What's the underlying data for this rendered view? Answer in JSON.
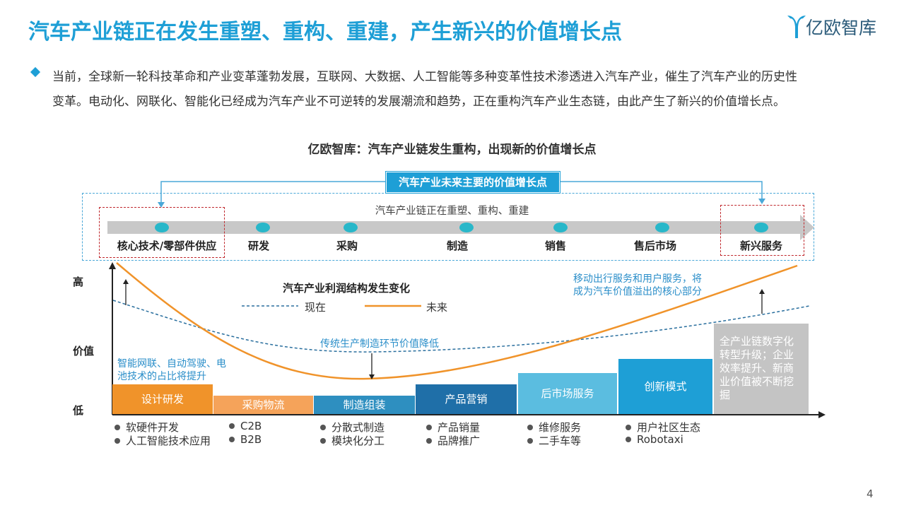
{
  "header": {
    "title": "汽车产业链正在发生重塑、重构、重建，产生新兴的价值增长点",
    "logo_text": "亿欧智库"
  },
  "intro": {
    "line1": "当前，全球新一轮科技革命和产业变革蓬勃发展，互联网、大数据、人工智能等多种变革性技术渗透进入汽车产业，催生了汽车产业的历史性",
    "line2": "变革。电动化、网联化、智能化已经成为汽车产业不可逆转的发展潮流和趋势，正在重构汽车产业生态链，由此产生了新兴的价值增长点。"
  },
  "diagram": {
    "title": "亿欧智库：汽车产业链发生重构，出现新的价值增长点",
    "future_growth_label": "汽车产业未来主要的价值增长点",
    "chain_subtitle": "汽车产业链正在重塑、重构、重建",
    "stages": [
      "核心技术/零部件供应",
      "研发",
      "采购",
      "制造",
      "销售",
      "售后市场",
      "新兴服务"
    ],
    "y_axis": {
      "high": "高",
      "mid": "价值",
      "low": "低"
    },
    "legend": {
      "title": "汽车产业利润结构发生变化",
      "now": "现在",
      "future": "未来"
    },
    "notes": {
      "left": [
        "智能网联、自动驾驶、电",
        "池技术的占比将提升"
      ],
      "middle": "传统生产制造环节价值降低",
      "right": [
        "移动出行服务和用户服务，将",
        "成为汽车价值溢出的核心部分"
      ]
    },
    "bars": [
      {
        "label": "设计研发",
        "color": "#f0932a"
      },
      {
        "label": "采购物流",
        "color": "#f5a35a"
      },
      {
        "label": "制造组装",
        "color": "#2e8fc0"
      },
      {
        "label": "产品营销",
        "color": "#1f6fa8"
      },
      {
        "label": "后市场服务",
        "color": "#5bbde0"
      },
      {
        "label": "创新模式",
        "color": "#1e9fd6"
      },
      {
        "label": "全产业链数字化转型升级；企业效率提升、新商业价值被不断挖掘",
        "color": "#c4c4c4"
      }
    ],
    "bar_values_note": "relative heights shown in figure",
    "lists": [
      [
        "软硬件开发",
        "人工智能技术应用"
      ],
      [
        "C2B",
        "B2B"
      ],
      [
        "分散式制造",
        "模块化分工"
      ],
      [
        "产品销量",
        "品牌推广"
      ],
      [
        "维修服务",
        "二手车等"
      ],
      [
        "用户社区生态",
        "Robotaxi"
      ]
    ]
  },
  "page_number": "4",
  "colors": {
    "accent": "#1e9fd6",
    "orange": "#f0932a",
    "red_dash": "#c0282d"
  }
}
